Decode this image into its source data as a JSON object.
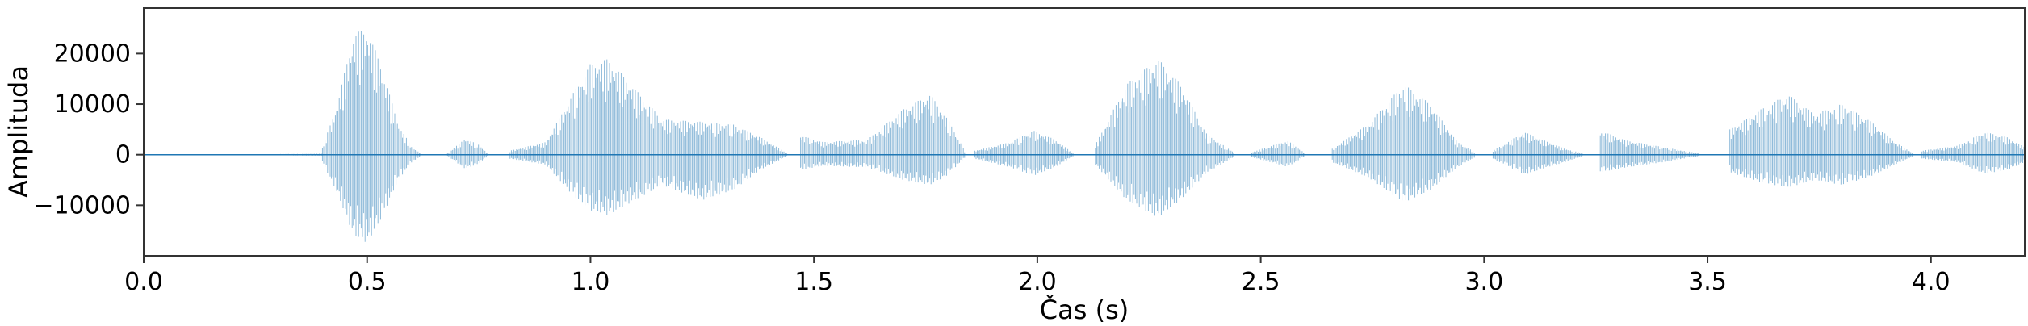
{
  "chart_data": {
    "type": "waveform",
    "xlabel": "Čas (s)",
    "ylabel": "Amplituda",
    "xlim": [
      0.0,
      4.21
    ],
    "ylim": [
      -20000,
      29000
    ],
    "x_ticks": [
      0.0,
      0.5,
      1.0,
      1.5,
      2.0,
      2.5,
      3.0,
      3.5,
      4.0
    ],
    "x_tick_labels": [
      "0.0",
      "0.5",
      "1.0",
      "1.5",
      "2.0",
      "2.5",
      "3.0",
      "3.5",
      "4.0"
    ],
    "y_ticks": [
      -10000,
      0,
      10000,
      20000
    ],
    "y_tick_labels": [
      "−10000",
      "0",
      "10000",
      "20000"
    ],
    "grid": false,
    "line_color": "#1f77b4",
    "envelope_segments": [
      {
        "start": 0.0,
        "end": 0.4,
        "peaks": [
          [
            0.0,
            50,
            -50
          ],
          [
            0.3,
            120,
            -120
          ],
          [
            0.4,
            200,
            -200
          ]
        ]
      },
      {
        "start": 0.4,
        "end": 0.62,
        "peaks": [
          [
            0.4,
            1500,
            -1500
          ],
          [
            0.43,
            9000,
            -7000
          ],
          [
            0.47,
            24000,
            -16000
          ],
          [
            0.5,
            25000,
            -17500
          ],
          [
            0.53,
            18000,
            -13000
          ],
          [
            0.57,
            6000,
            -5000
          ],
          [
            0.6,
            1500,
            -1500
          ],
          [
            0.62,
            300,
            -300
          ]
        ]
      },
      {
        "start": 0.68,
        "end": 0.77,
        "peaks": [
          [
            0.68,
            300,
            -300
          ],
          [
            0.72,
            3200,
            -2800
          ],
          [
            0.75,
            2000,
            -1800
          ],
          [
            0.77,
            300,
            -300
          ]
        ]
      },
      {
        "start": 0.82,
        "end": 1.44,
        "peaks": [
          [
            0.82,
            800,
            -800
          ],
          [
            0.9,
            2500,
            -2000
          ],
          [
            0.96,
            12000,
            -8000
          ],
          [
            1.0,
            18000,
            -11000
          ],
          [
            1.04,
            19000,
            -12000
          ],
          [
            1.1,
            13000,
            -9000
          ],
          [
            1.16,
            7000,
            -6000
          ],
          [
            1.25,
            6500,
            -9000
          ],
          [
            1.32,
            6000,
            -7000
          ],
          [
            1.38,
            3500,
            -3000
          ],
          [
            1.44,
            300,
            -300
          ]
        ]
      },
      {
        "start": 1.47,
        "end": 1.84,
        "peaks": [
          [
            1.47,
            3800,
            -3000
          ],
          [
            1.52,
            2500,
            -2200
          ],
          [
            1.62,
            3000,
            -2500
          ],
          [
            1.7,
            9000,
            -5000
          ],
          [
            1.76,
            12000,
            -6000
          ],
          [
            1.8,
            7000,
            -4000
          ],
          [
            1.84,
            400,
            -400
          ]
        ]
      },
      {
        "start": 1.86,
        "end": 2.08,
        "peaks": [
          [
            1.86,
            800,
            -800
          ],
          [
            1.94,
            2500,
            -2500
          ],
          [
            1.99,
            4800,
            -4200
          ],
          [
            2.04,
            3000,
            -2500
          ],
          [
            2.08,
            300,
            -300
          ]
        ]
      },
      {
        "start": 2.13,
        "end": 2.44,
        "peaks": [
          [
            2.13,
            2000,
            -2000
          ],
          [
            2.2,
            14000,
            -9000
          ],
          [
            2.27,
            19000,
            -12500
          ],
          [
            2.32,
            14000,
            -9000
          ],
          [
            2.38,
            4000,
            -3500
          ],
          [
            2.44,
            500,
            -500
          ]
        ]
      },
      {
        "start": 2.48,
        "end": 2.6,
        "peaks": [
          [
            2.48,
            500,
            -500
          ],
          [
            2.56,
            2800,
            -2400
          ],
          [
            2.6,
            300,
            -300
          ]
        ]
      },
      {
        "start": 2.66,
        "end": 2.98,
        "peaks": [
          [
            2.66,
            1200,
            -1500
          ],
          [
            2.74,
            6000,
            -4500
          ],
          [
            2.82,
            14000,
            -9500
          ],
          [
            2.88,
            10000,
            -7000
          ],
          [
            2.94,
            2500,
            -2500
          ],
          [
            2.98,
            500,
            -500
          ]
        ]
      },
      {
        "start": 3.02,
        "end": 3.22,
        "peaks": [
          [
            3.02,
            800,
            -800
          ],
          [
            3.09,
            4500,
            -4000
          ],
          [
            3.13,
            3000,
            -2800
          ],
          [
            3.18,
            1200,
            -1500
          ],
          [
            3.22,
            300,
            -300
          ]
        ]
      },
      {
        "start": 3.26,
        "end": 3.48,
        "peaks": [
          [
            3.26,
            4800,
            -3500
          ],
          [
            3.32,
            2800,
            -2500
          ],
          [
            3.4,
            1500,
            -1500
          ],
          [
            3.48,
            300,
            -300
          ]
        ]
      },
      {
        "start": 3.55,
        "end": 3.96,
        "peaks": [
          [
            3.55,
            5000,
            -3500
          ],
          [
            3.62,
            9000,
            -5500
          ],
          [
            3.68,
            12000,
            -6500
          ],
          [
            3.74,
            8000,
            -5000
          ],
          [
            3.8,
            10000,
            -6000
          ],
          [
            3.86,
            7000,
            -4500
          ],
          [
            3.92,
            2500,
            -2000
          ],
          [
            3.96,
            300,
            -300
          ]
        ]
      },
      {
        "start": 3.98,
        "end": 4.21,
        "peaks": [
          [
            3.98,
            800,
            -800
          ],
          [
            4.06,
            1800,
            -1500
          ],
          [
            4.12,
            4500,
            -3800
          ],
          [
            4.17,
            3500,
            -3000
          ],
          [
            4.21,
            1500,
            -1500
          ]
        ]
      }
    ]
  }
}
